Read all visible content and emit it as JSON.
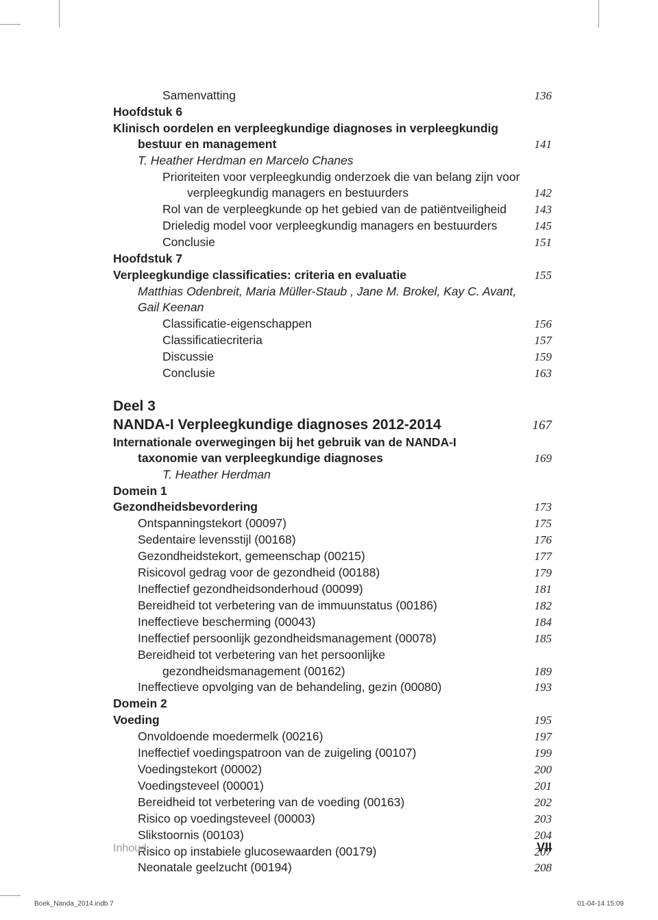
{
  "toc": [
    {
      "label": "Samenvatting",
      "page": "136",
      "indent": 2
    },
    {
      "label": "Hoofdstuk 6",
      "bold": true,
      "indent": 0
    },
    {
      "label": "Klinisch oordelen en verpleegkundige diagnoses in verpleegkundig",
      "bold": true,
      "indent": 0
    },
    {
      "label": "bestuur en management",
      "page": "141",
      "bold": true,
      "indent": 1
    },
    {
      "label": "T. Heather Herdman en Marcelo Chanes",
      "italic": true,
      "indent": 1
    },
    {
      "label": "Prioriteiten voor verpleegkundig onderzoek die van belang zijn voor",
      "indent": 2
    },
    {
      "label": "verpleegkundig managers en bestuurders",
      "page": "142",
      "indent": "cont"
    },
    {
      "label": "Rol van de verpleegkunde op het gebied van de patiëntveiligheid",
      "page": "143",
      "indent": 2
    },
    {
      "label": "Drieledig model voor verpleegkundig managers en bestuurders",
      "page": "145",
      "indent": 2
    },
    {
      "label": "Conclusie",
      "page": "151",
      "indent": 2
    },
    {
      "label": "Hoofdstuk 7",
      "bold": true,
      "indent": 0
    },
    {
      "label": "Verpleegkundige classificaties: criteria en evaluatie",
      "page": "155",
      "bold": true,
      "indent": 0
    },
    {
      "label": "Matthias Odenbreit, Maria Müller-Staub , Jane M. Brokel, Kay C. Avant,",
      "italic": true,
      "indent": 1
    },
    {
      "label": "Gail Keenan",
      "italic": true,
      "indent": 1
    },
    {
      "label": "Classificatie-eigenschappen",
      "page": "156",
      "indent": 2
    },
    {
      "label": "Classificatiecriteria",
      "page": "157",
      "indent": 2
    },
    {
      "label": "Discussie",
      "page": "159",
      "indent": 2
    },
    {
      "label": "Conclusie",
      "page": "163",
      "indent": 2
    }
  ],
  "part": {
    "heading": "Deel 3",
    "title": "NANDA-I Verpleegkundige diagnoses 2012-2014",
    "title_page": "167"
  },
  "toc2": [
    {
      "label": "Internationale overwegingen bij het gebruik van de NANDA-I",
      "bold": true,
      "indent": 0
    },
    {
      "label": "taxonomie van verpleegkundige diagnoses",
      "page": "169",
      "bold": true,
      "indent": 1
    },
    {
      "label": "T. Heather Herdman",
      "italic": true,
      "indent": 2
    },
    {
      "label": "Domein 1",
      "bold": true,
      "indent": 0
    },
    {
      "label": "Gezondheidsbevordering",
      "page": "173",
      "bold": true,
      "indent": 0
    },
    {
      "label": "Ontspanningstekort (00097)",
      "page": "175",
      "indent": 1
    },
    {
      "label": "Sedentaire levensstijl (00168)",
      "page": "176",
      "indent": 1
    },
    {
      "label": "Gezondheidstekort, gemeenschap (00215)",
      "page": "177",
      "indent": 1
    },
    {
      "label": "Risicovol gedrag voor de gezondheid (00188)",
      "page": "179",
      "indent": 1
    },
    {
      "label": "Ineffectief gezondheidsonderhoud (00099)",
      "page": "181",
      "indent": 1
    },
    {
      "label": "Bereidheid tot verbetering van de immuunstatus (00186)",
      "page": "182",
      "indent": 1
    },
    {
      "label": "Ineffectieve bescherming (00043)",
      "page": "184",
      "indent": 1
    },
    {
      "label": "Ineffectief persoonlijk gezondheidsmanagement (00078)",
      "page": "185",
      "indent": 1
    },
    {
      "label": "Bereidheid tot verbetering van het persoonlijke",
      "indent": 1
    },
    {
      "label": "gezondheidsmanagement (00162)",
      "page": "189",
      "indent": 2
    },
    {
      "label": "Ineffectieve opvolging van de behandeling, gezin (00080)",
      "page": "193",
      "indent": 1
    },
    {
      "label": "Domein 2",
      "bold": true,
      "indent": 0
    },
    {
      "label": "Voeding",
      "page": "195",
      "bold": true,
      "indent": 0
    },
    {
      "label": "Onvoldoende moedermelk (00216)",
      "page": "197",
      "indent": 1
    },
    {
      "label": "Ineffectief voedingspatroon van de zuigeling (00107)",
      "page": "199",
      "indent": 1
    },
    {
      "label": "Voedingstekort (00002)",
      "page": "200",
      "indent": 1
    },
    {
      "label": "Voedingsteveel (00001)",
      "page": "201",
      "indent": 1
    },
    {
      "label": "Bereidheid tot verbetering van de voeding (00163)",
      "page": "202",
      "indent": 1
    },
    {
      "label": "Risico op voedingsteveel (00003)",
      "page": "203",
      "indent": 1
    },
    {
      "label": "Slikstoornis (00103)",
      "page": "204",
      "indent": 1
    },
    {
      "label": "Risico op instabiele glucosewaarden (00179)",
      "page": "207",
      "indent": 1
    },
    {
      "label": "Neonatale geelzucht (00194)",
      "page": "208",
      "indent": 1
    }
  ],
  "footer": {
    "label": "Inhoud",
    "page": "VII"
  },
  "slug": {
    "file": "Boek_Nanda_2014.indb   7",
    "timestamp": "01-04-14   15:09"
  }
}
